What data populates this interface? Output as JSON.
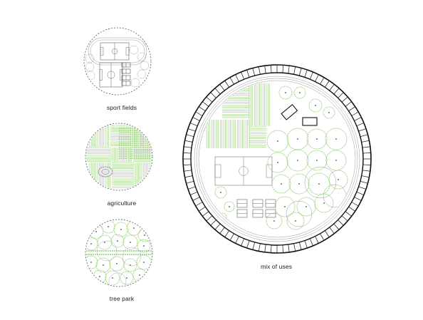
{
  "panels": [
    {
      "id": "sport",
      "label": "sport fields"
    },
    {
      "id": "agri",
      "label": "agriculture"
    },
    {
      "id": "trees",
      "label": "tree park"
    },
    {
      "id": "mix",
      "label": "mix of uses"
    }
  ],
  "colors": {
    "line": "#9a9a9a",
    "dark": "#111111",
    "green": "#7fc25b",
    "green_light": "#b9e0a0"
  }
}
